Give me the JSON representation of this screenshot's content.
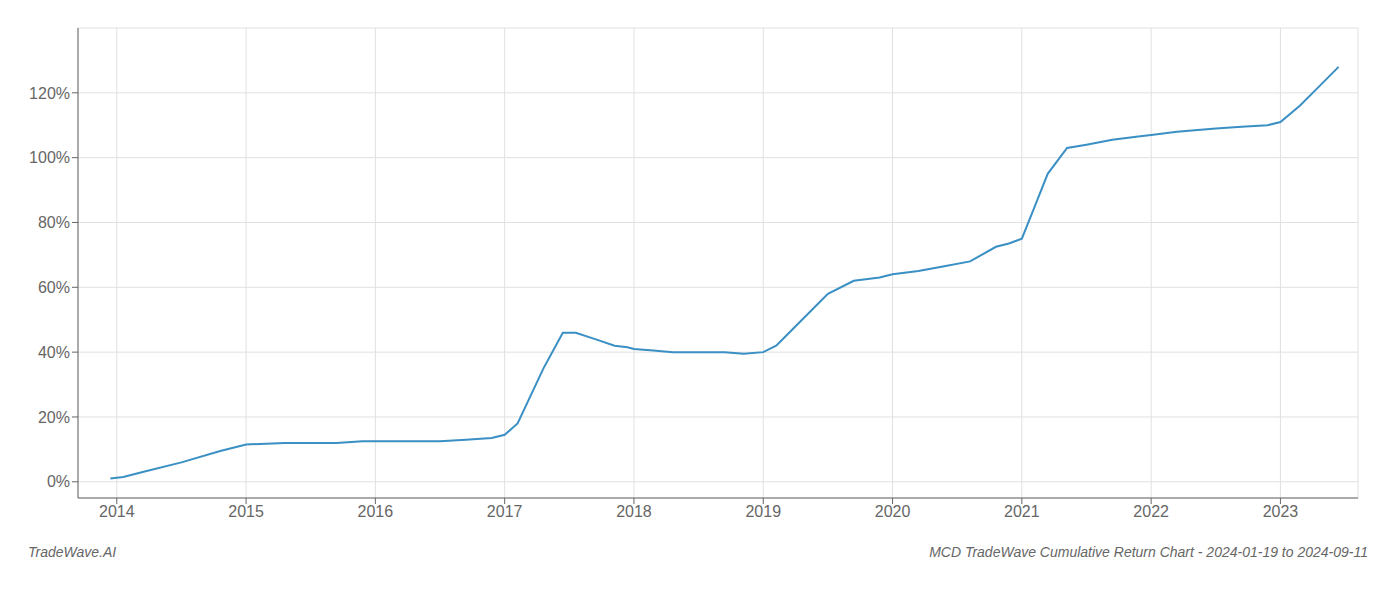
{
  "chart_data": {
    "type": "line",
    "title": "MCD TradeWave Cumulative Return Chart - 2024-01-19 to 2024-09-11",
    "annotations": [
      "TradeWave.AI"
    ],
    "x": [
      2013.95,
      2014.05,
      2014.2,
      2014.5,
      2014.8,
      2015.0,
      2015.3,
      2015.5,
      2015.7,
      2015.9,
      2016.0,
      2016.2,
      2016.5,
      2016.7,
      2016.9,
      2017.0,
      2017.1,
      2017.3,
      2017.45,
      2017.55,
      2017.7,
      2017.85,
      2017.95,
      2018.0,
      2018.15,
      2018.3,
      2018.5,
      2018.7,
      2018.85,
      2019.0,
      2019.1,
      2019.2,
      2019.3,
      2019.5,
      2019.7,
      2019.9,
      2020.0,
      2020.2,
      2020.4,
      2020.6,
      2020.8,
      2020.9,
      2021.0,
      2021.1,
      2021.2,
      2021.35,
      2021.5,
      2021.7,
      2021.9,
      2022.0,
      2022.2,
      2022.5,
      2022.7,
      2022.9,
      2023.0,
      2023.15,
      2023.3,
      2023.45
    ],
    "values": [
      1.0,
      1.5,
      3.0,
      6.0,
      9.5,
      11.5,
      12.0,
      12.0,
      12.0,
      12.5,
      12.5,
      12.5,
      12.5,
      13.0,
      13.5,
      14.5,
      18.0,
      35.0,
      46.0,
      46.0,
      44.0,
      42.0,
      41.5,
      41.0,
      40.5,
      40.0,
      40.0,
      40.0,
      39.5,
      40.0,
      42.0,
      46.0,
      50.0,
      58.0,
      62.0,
      63.0,
      64.0,
      65.0,
      66.5,
      68.0,
      72.5,
      73.5,
      75.0,
      85.0,
      95.0,
      103.0,
      104.0,
      105.5,
      106.5,
      107.0,
      108.0,
      109.0,
      109.5,
      110.0,
      111.0,
      116.0,
      122.0,
      128.0
    ],
    "color": "#3a8fc4",
    "xlim": [
      2013.7,
      2023.6
    ],
    "xticks": [
      2014,
      2015,
      2016,
      2017,
      2018,
      2019,
      2020,
      2021,
      2022,
      2023
    ],
    "ylim": [
      -5,
      140
    ],
    "yticks": [
      {
        "value": 0,
        "label": "0%"
      },
      {
        "value": 20,
        "label": "20%"
      },
      {
        "value": 40,
        "label": "40%"
      },
      {
        "value": 60,
        "label": "60%"
      },
      {
        "value": 80,
        "label": "80%"
      },
      {
        "value": 100,
        "label": "100%"
      },
      {
        "value": 120,
        "label": "120%"
      }
    ],
    "grid": true
  }
}
